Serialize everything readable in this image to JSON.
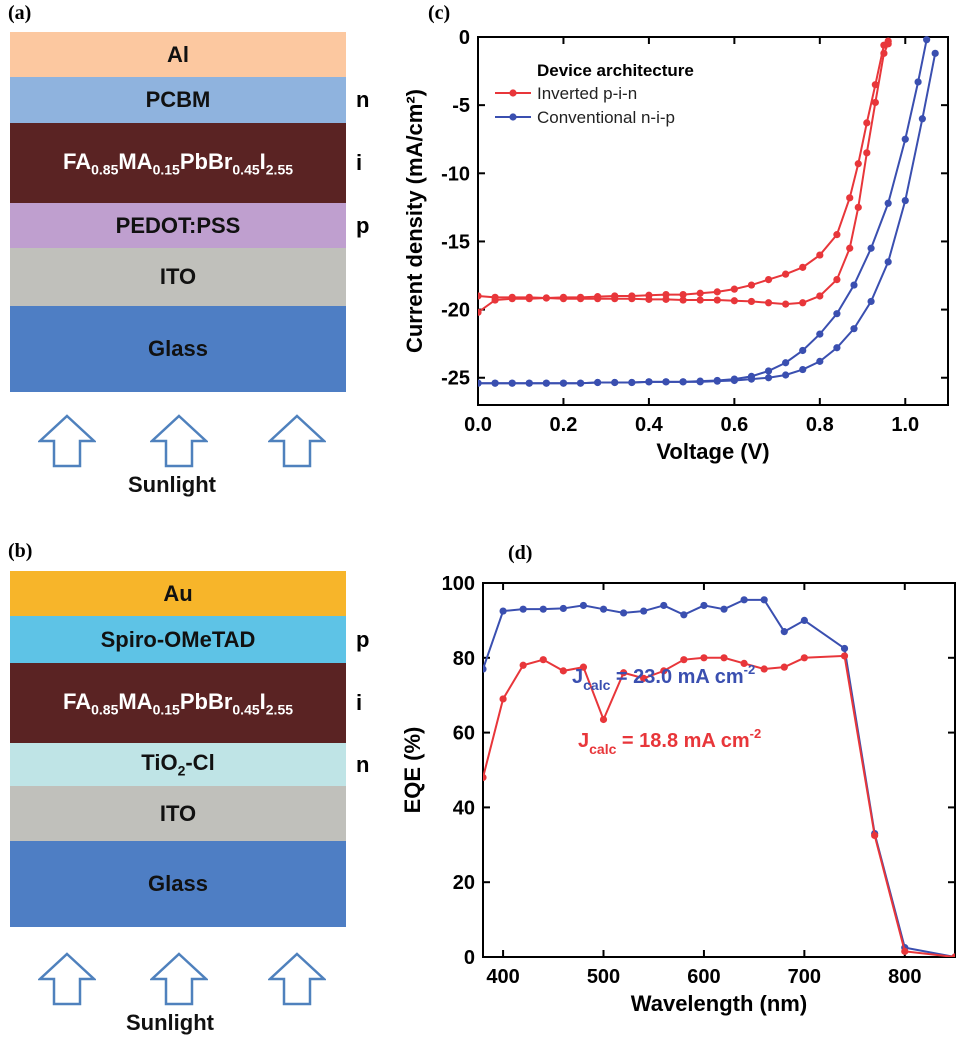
{
  "panels": {
    "a": {
      "label": "(a)",
      "layers": [
        {
          "parts": [
            {
              "t": "Al"
            }
          ],
          "color": "#fcc8a0",
          "tag": ""
        },
        {
          "parts": [
            {
              "t": "PCBM"
            }
          ],
          "color": "#8fb3de",
          "tag": "n"
        },
        {
          "parts": [
            {
              "t": "FA"
            },
            {
              "t": "0.85",
              "sub": true
            },
            {
              "t": "MA"
            },
            {
              "t": "0.15",
              "sub": true
            },
            {
              "t": "PbBr"
            },
            {
              "t": "0.45",
              "sub": true
            },
            {
              "t": "I"
            },
            {
              "t": "2.55",
              "sub": true
            }
          ],
          "color": "#5a2323",
          "tag": "i",
          "dark": true
        },
        {
          "parts": [
            {
              "t": "PEDOT:PSS"
            }
          ],
          "color": "#bf9fcf",
          "tag": "p"
        },
        {
          "parts": [
            {
              "t": "ITO"
            }
          ],
          "color": "#c0c0bb",
          "tag": ""
        },
        {
          "parts": [
            {
              "t": "Glass"
            }
          ],
          "color": "#4e7ec4",
          "tag": ""
        }
      ],
      "sunlight": "Sunlight"
    },
    "b": {
      "label": "(b)",
      "layers": [
        {
          "parts": [
            {
              "t": "Au"
            }
          ],
          "color": "#f7b52a",
          "tag": ""
        },
        {
          "parts": [
            {
              "t": "Spiro-OMeTAD"
            }
          ],
          "color": "#5ec3e6",
          "tag": "p"
        },
        {
          "parts": [
            {
              "t": "FA"
            },
            {
              "t": "0.85",
              "sub": true
            },
            {
              "t": "MA"
            },
            {
              "t": "0.15",
              "sub": true
            },
            {
              "t": "PbBr"
            },
            {
              "t": "0.45",
              "sub": true
            },
            {
              "t": "I"
            },
            {
              "t": "2.55",
              "sub": true
            }
          ],
          "color": "#5a2323",
          "tag": "i",
          "dark": true
        },
        {
          "parts": [
            {
              "t": "TiO"
            },
            {
              "t": "2",
              "sub": true
            },
            {
              "t": "-Cl"
            }
          ],
          "color": "#bfe4e6",
          "tag": "n"
        },
        {
          "parts": [
            {
              "t": "ITO"
            }
          ],
          "color": "#c0c0bb",
          "tag": ""
        },
        {
          "parts": [
            {
              "t": "Glass"
            }
          ],
          "color": "#4e7ec4",
          "tag": ""
        }
      ],
      "sunlight": "Sunlight"
    },
    "c": {
      "label": "(c)"
    },
    "d": {
      "label": "(d)"
    }
  },
  "colors": {
    "red": "#e8363a",
    "blue": "#3a4fb0",
    "arrow": "#4f81bd"
  },
  "chart_data": [
    {
      "type": "line",
      "panel": "c",
      "xlabel": "Voltage (V)",
      "ylabel": "Current density (mA/cm²)",
      "xlim": [
        0.0,
        1.1
      ],
      "ylim": [
        -27,
        0
      ],
      "xticks": [
        {
          "v": 0.0,
          "label": "0.0"
        },
        {
          "v": 0.2,
          "label": "0.2"
        },
        {
          "v": 0.4,
          "label": "0.4"
        },
        {
          "v": 0.6,
          "label": "0.6"
        },
        {
          "v": 0.8,
          "label": "0.8"
        },
        {
          "v": 1.0,
          "label": "1.0"
        }
      ],
      "yticks": [
        {
          "v": 0,
          "label": "0"
        },
        {
          "v": -5,
          "label": "-5"
        },
        {
          "v": -10,
          "label": "-10"
        },
        {
          "v": -15,
          "label": "-15"
        },
        {
          "v": -20,
          "label": "-20"
        },
        {
          "v": -25,
          "label": "-25"
        }
      ],
      "legend_title": "Device architecture",
      "legend_position": "top-left",
      "series": [
        {
          "name": "Inverted p-i-n",
          "color": "red",
          "show_legend": true,
          "x": [
            0.0,
            0.04,
            0.08,
            0.12,
            0.16,
            0.2,
            0.24,
            0.28,
            0.32,
            0.36,
            0.4,
            0.44,
            0.48,
            0.52,
            0.56,
            0.6,
            0.64,
            0.68,
            0.72,
            0.76,
            0.8,
            0.84,
            0.87,
            0.89,
            0.91,
            0.93,
            0.95,
            0.96
          ],
          "y": [
            -20.2,
            -19.3,
            -19.2,
            -19.2,
            -19.15,
            -19.1,
            -19.1,
            -19.05,
            -19.0,
            -19.0,
            -18.95,
            -18.9,
            -18.9,
            -18.8,
            -18.7,
            -18.5,
            -18.2,
            -17.8,
            -17.4,
            -16.9,
            -16.0,
            -14.5,
            -11.8,
            -9.3,
            -6.3,
            -3.5,
            -0.6,
            -0.3
          ]
        },
        {
          "name": "",
          "color": "red",
          "show_legend": false,
          "x": [
            0.0,
            0.04,
            0.08,
            0.12,
            0.16,
            0.2,
            0.24,
            0.28,
            0.32,
            0.36,
            0.4,
            0.44,
            0.48,
            0.52,
            0.56,
            0.6,
            0.64,
            0.68,
            0.72,
            0.76,
            0.8,
            0.84,
            0.87,
            0.89,
            0.91,
            0.93,
            0.95,
            0.96
          ],
          "y": [
            -19.0,
            -19.1,
            -19.1,
            -19.1,
            -19.15,
            -19.2,
            -19.2,
            -19.2,
            -19.2,
            -19.2,
            -19.25,
            -19.25,
            -19.3,
            -19.3,
            -19.3,
            -19.35,
            -19.4,
            -19.5,
            -19.6,
            -19.5,
            -19.0,
            -17.8,
            -15.5,
            -12.5,
            -8.5,
            -4.8,
            -1.2,
            -0.5
          ]
        },
        {
          "name": "Conventional n-i-p",
          "color": "blue",
          "show_legend": true,
          "x": [
            0.0,
            0.04,
            0.08,
            0.12,
            0.16,
            0.2,
            0.24,
            0.28,
            0.32,
            0.36,
            0.4,
            0.44,
            0.48,
            0.52,
            0.56,
            0.6,
            0.64,
            0.68,
            0.72,
            0.76,
            0.8,
            0.84,
            0.88,
            0.92,
            0.96,
            1.0,
            1.03,
            1.05
          ],
          "y": [
            -25.4,
            -25.4,
            -25.4,
            -25.4,
            -25.4,
            -25.4,
            -25.4,
            -25.35,
            -25.35,
            -25.35,
            -25.3,
            -25.3,
            -25.3,
            -25.25,
            -25.2,
            -25.1,
            -24.9,
            -24.5,
            -23.9,
            -23.0,
            -21.8,
            -20.3,
            -18.2,
            -15.5,
            -12.2,
            -7.5,
            -3.3,
            -0.2
          ]
        },
        {
          "name": "",
          "color": "blue",
          "show_legend": false,
          "x": [
            0.0,
            0.04,
            0.08,
            0.12,
            0.16,
            0.2,
            0.24,
            0.28,
            0.32,
            0.36,
            0.4,
            0.44,
            0.48,
            0.52,
            0.56,
            0.6,
            0.64,
            0.68,
            0.72,
            0.76,
            0.8,
            0.84,
            0.88,
            0.92,
            0.96,
            1.0,
            1.04,
            1.07
          ],
          "y": [
            -25.4,
            -25.4,
            -25.4,
            -25.4,
            -25.4,
            -25.4,
            -25.4,
            -25.35,
            -25.35,
            -25.35,
            -25.3,
            -25.3,
            -25.3,
            -25.3,
            -25.25,
            -25.2,
            -25.1,
            -25.0,
            -24.8,
            -24.4,
            -23.8,
            -22.8,
            -21.4,
            -19.4,
            -16.5,
            -12.0,
            -6.0,
            -1.2
          ]
        }
      ]
    },
    {
      "type": "line",
      "panel": "d",
      "xlabel": "Wavelength (nm)",
      "ylabel": "EQE (%)",
      "xlim": [
        380,
        850
      ],
      "ylim": [
        0,
        100
      ],
      "xticks": [
        {
          "v": 400,
          "label": "400"
        },
        {
          "v": 500,
          "label": "500"
        },
        {
          "v": 600,
          "label": "600"
        },
        {
          "v": 700,
          "label": "700"
        },
        {
          "v": 800,
          "label": "800"
        }
      ],
      "yticks": [
        {
          "v": 0,
          "label": "0"
        },
        {
          "v": 20,
          "label": "20"
        },
        {
          "v": 40,
          "label": "40"
        },
        {
          "v": 60,
          "label": "60"
        },
        {
          "v": 80,
          "label": "80"
        },
        {
          "v": 100,
          "label": "100"
        }
      ],
      "series": [
        {
          "name": "",
          "color": "blue",
          "x": [
            380,
            400,
            420,
            440,
            460,
            480,
            500,
            520,
            540,
            560,
            580,
            600,
            620,
            640,
            660,
            680,
            700,
            740,
            770,
            800,
            850
          ],
          "y": [
            77,
            92.5,
            93,
            93,
            93.2,
            94,
            93,
            92,
            92.5,
            94,
            91.5,
            94,
            93,
            95.5,
            95.5,
            87,
            90,
            82.5,
            33,
            2.5,
            0
          ]
        },
        {
          "name": "",
          "color": "red",
          "x": [
            380,
            400,
            420,
            440,
            460,
            480,
            500,
            520,
            540,
            560,
            580,
            600,
            620,
            640,
            660,
            680,
            700,
            740,
            770,
            800,
            850
          ],
          "y": [
            48,
            69,
            78,
            79.5,
            76.5,
            77.5,
            63.5,
            76,
            74.5,
            76.5,
            79.5,
            80,
            80,
            78.5,
            77,
            77.5,
            80,
            80.5,
            32.5,
            1.5,
            0
          ]
        }
      ],
      "annotations": [
        {
          "color": "blue",
          "main": "J",
          "sub": "calc",
          "rest": " = 23.0 mA cm",
          "sup": "-2"
        },
        {
          "color": "red",
          "main": "J",
          "sub": "calc",
          "rest": " = 18.8 mA cm",
          "sup": "-2"
        }
      ]
    }
  ]
}
